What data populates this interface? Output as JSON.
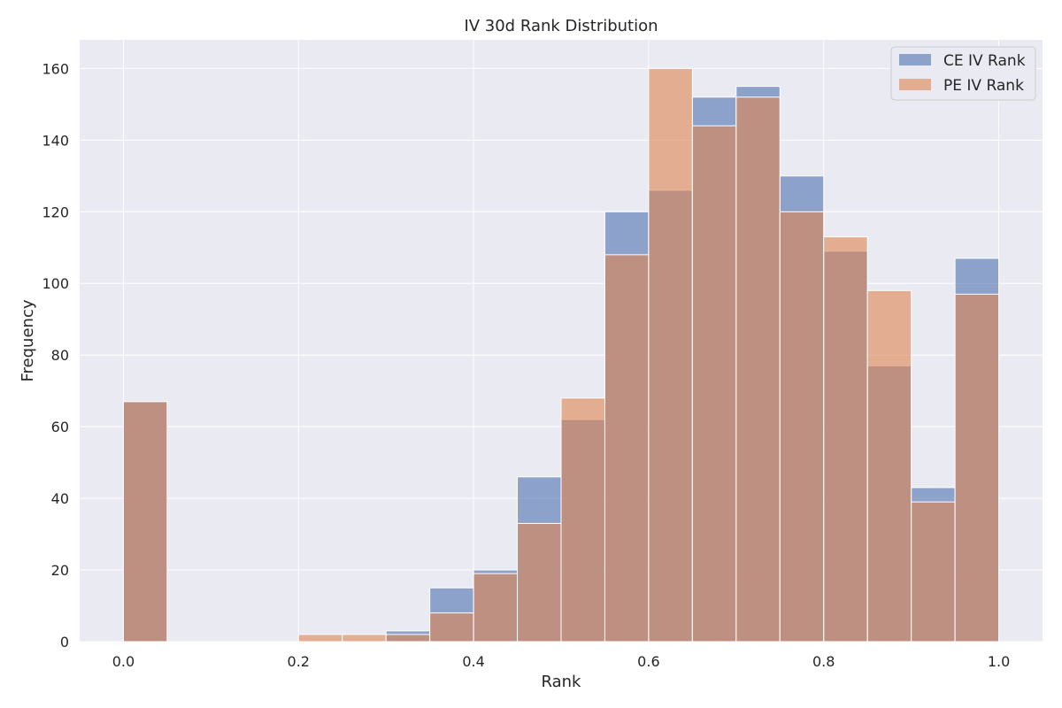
{
  "chart_data": {
    "type": "bar",
    "subtype": "overlaid-histogram",
    "title": "IV 30d Rank Distribution",
    "xlabel": "Rank",
    "ylabel": "Frequency",
    "xlim": [
      -0.05,
      1.05
    ],
    "ylim": [
      0,
      168
    ],
    "xticks": [
      "0.0",
      "0.2",
      "0.4",
      "0.6",
      "0.8",
      "1.0"
    ],
    "yticks": [
      "0",
      "20",
      "40",
      "60",
      "80",
      "100",
      "120",
      "140",
      "160"
    ],
    "grid": true,
    "legend_position": "top-right",
    "bin_edges": [
      0.0,
      0.05,
      0.1,
      0.15,
      0.2,
      0.25,
      0.3,
      0.35,
      0.4,
      0.45,
      0.5,
      0.55,
      0.6,
      0.65,
      0.7,
      0.75,
      0.8,
      0.85,
      0.9,
      0.95,
      1.0
    ],
    "series": [
      {
        "name": "CE IV Rank",
        "color": "#4c72b0",
        "values": [
          67,
          0,
          0,
          0,
          0,
          0,
          3,
          15,
          20,
          46,
          62,
          120,
          126,
          152,
          155,
          130,
          109,
          77,
          43,
          107
        ]
      },
      {
        "name": "PE IV Rank",
        "color": "#dd8452",
        "values": [
          67,
          0,
          0,
          0,
          2,
          2,
          2,
          8,
          19,
          33,
          68,
          108,
          160,
          144,
          152,
          120,
          113,
          98,
          39,
          97
        ]
      }
    ]
  },
  "colors": {
    "plot_background": "#eaeaf2",
    "grid": "#ffffff",
    "bar_edge": "#ffffff"
  }
}
